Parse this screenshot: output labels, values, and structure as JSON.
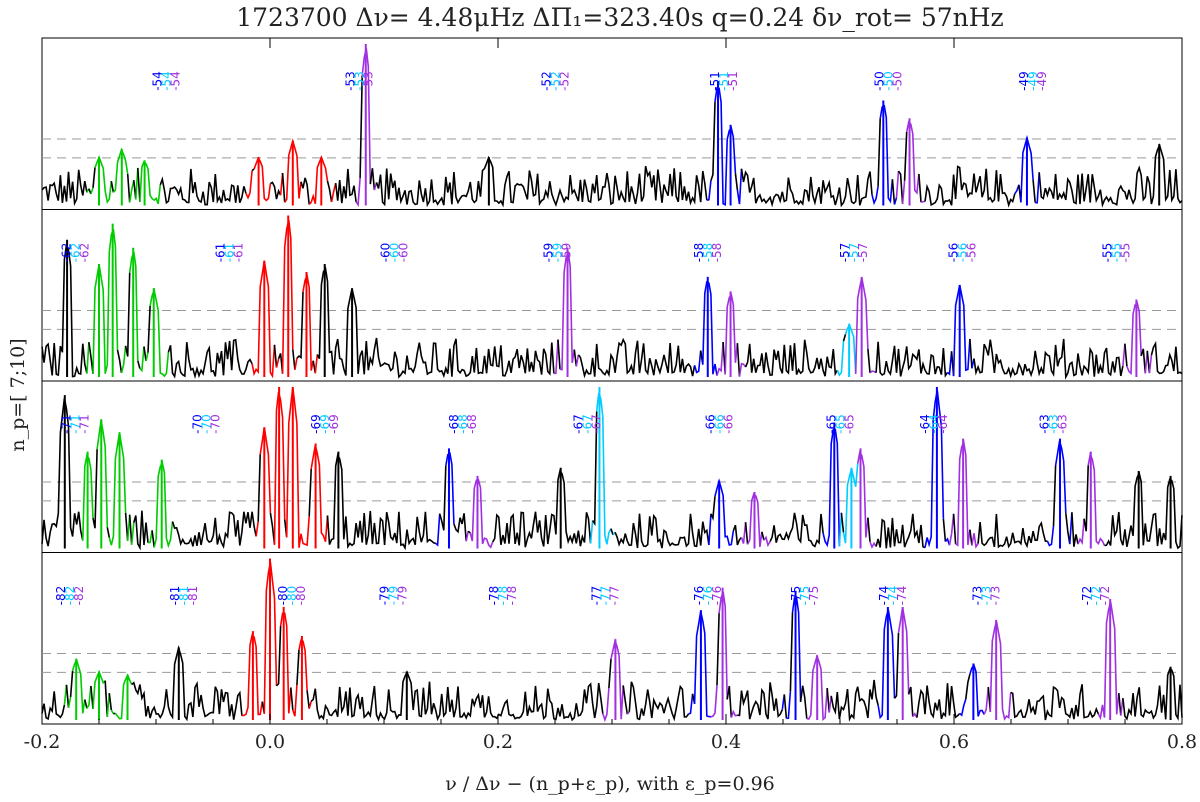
{
  "chart_data": {
    "type": "line",
    "title": "1723700  Δν= 4.48μHz  ΔΠ₁=323.40s  q=0.24  δν_rot= 57nHz",
    "xlabel": "ν / Δν − (n_p+ε_p),   with ε_p=0.96",
    "ylabel": "n_p=[ 7;10]",
    "xlim": [
      -0.2,
      0.8
    ],
    "xticks": [
      "-0.2",
      "0.0",
      "0.2",
      "0.4",
      "0.6",
      "0.8"
    ],
    "grid": "dashed horizontal threshold lines in each panel",
    "colors": {
      "spectrum": "#000000",
      "l0": "#ff0000",
      "l2": "#00cc00",
      "m_minus": "#0000ff",
      "m_zero": "#00ccff",
      "m_plus": "#a030e0",
      "threshold": "#999999"
    },
    "panels": [
      {
        "labels": [
          {
            "x": -0.095,
            "text": [
              "-54",
              "-54",
              "-54"
            ]
          },
          {
            "x": 0.074,
            "text": [
              "-53",
              "-53",
              "-53"
            ]
          },
          {
            "x": 0.246,
            "text": [
              "-52",
              "-52",
              "-52"
            ]
          },
          {
            "x": 0.394,
            "text": [
              "-51",
              "-51",
              "-51"
            ]
          },
          {
            "x": 0.538,
            "text": [
              "-50",
              "-50",
              "-50"
            ]
          },
          {
            "x": 0.665,
            "text": [
              "-49",
              "-49",
              "-49"
            ]
          }
        ],
        "peaks": [
          {
            "x": -0.15,
            "h": 0.3,
            "c": "l2"
          },
          {
            "x": -0.13,
            "h": 0.35,
            "c": "l2"
          },
          {
            "x": -0.11,
            "h": 0.28,
            "c": "l2"
          },
          {
            "x": -0.01,
            "h": 0.3,
            "c": "l0"
          },
          {
            "x": 0.02,
            "h": 0.4,
            "c": "l0"
          },
          {
            "x": 0.045,
            "h": 0.3,
            "c": "l0"
          },
          {
            "x": 0.084,
            "h": 1.0,
            "c": "m_plus"
          },
          {
            "x": 0.393,
            "h": 0.77,
            "c": "m_minus"
          },
          {
            "x": 0.404,
            "h": 0.5,
            "c": "m_minus"
          },
          {
            "x": 0.538,
            "h": 0.65,
            "c": "m_minus"
          },
          {
            "x": 0.561,
            "h": 0.54,
            "c": "m_plus"
          },
          {
            "x": 0.664,
            "h": 0.42,
            "c": "m_minus"
          },
          {
            "x": 0.78,
            "h": 0.38,
            "c": "spectrum"
          },
          {
            "x": 0.192,
            "h": 0.3,
            "c": "spectrum"
          }
        ]
      },
      {
        "labels": [
          {
            "x": -0.175,
            "text": [
              "-62",
              "-62",
              "-62"
            ]
          },
          {
            "x": -0.04,
            "text": [
              "-61",
              "-61",
              "-61"
            ]
          },
          {
            "x": 0.105,
            "text": [
              "-60",
              "-60",
              "-60"
            ]
          },
          {
            "x": 0.248,
            "text": [
              "-59",
              "-59",
              "-59"
            ]
          },
          {
            "x": 0.38,
            "text": [
              "-58",
              "-58",
              "-58"
            ]
          },
          {
            "x": 0.508,
            "text": [
              "-57",
              "-57",
              "-57"
            ]
          },
          {
            "x": 0.603,
            "text": [
              "-56",
              "-56",
              "-56"
            ]
          },
          {
            "x": 0.738,
            "text": [
              "-55",
              "-55",
              "-55"
            ]
          }
        ],
        "peaks": [
          {
            "x": -0.178,
            "h": 0.85,
            "c": "spectrum"
          },
          {
            "x": -0.15,
            "h": 0.7,
            "c": "l2"
          },
          {
            "x": -0.138,
            "h": 0.95,
            "c": "l2"
          },
          {
            "x": -0.12,
            "h": 0.8,
            "c": "l2"
          },
          {
            "x": -0.102,
            "h": 0.55,
            "c": "l2"
          },
          {
            "x": -0.005,
            "h": 0.72,
            "c": "l0"
          },
          {
            "x": 0.016,
            "h": 1.0,
            "c": "l0"
          },
          {
            "x": 0.032,
            "h": 0.65,
            "c": "l0"
          },
          {
            "x": 0.048,
            "h": 0.7,
            "c": "spectrum"
          },
          {
            "x": 0.072,
            "h": 0.55,
            "c": "spectrum"
          },
          {
            "x": 0.261,
            "h": 0.8,
            "c": "m_plus"
          },
          {
            "x": 0.384,
            "h": 0.62,
            "c": "m_minus"
          },
          {
            "x": 0.404,
            "h": 0.53,
            "c": "m_plus"
          },
          {
            "x": 0.508,
            "h": 0.33,
            "c": "m_zero"
          },
          {
            "x": 0.519,
            "h": 0.62,
            "c": "m_plus"
          },
          {
            "x": 0.605,
            "h": 0.57,
            "c": "m_minus"
          },
          {
            "x": 0.76,
            "h": 0.48,
            "c": "m_plus"
          }
        ]
      },
      {
        "labels": [
          {
            "x": -0.175,
            "text": [
              "-71",
              "-71",
              "-71"
            ]
          },
          {
            "x": -0.06,
            "text": [
              "-70",
              "-70",
              "-70"
            ]
          },
          {
            "x": 0.044,
            "text": [
              "-69",
              "-69",
              "-69"
            ]
          },
          {
            "x": 0.165,
            "text": [
              "-68",
              "-68",
              "-68"
            ]
          },
          {
            "x": 0.274,
            "text": [
              "-67",
              "-67",
              "-67"
            ]
          },
          {
            "x": 0.39,
            "text": [
              "-66",
              "-66",
              "-66"
            ]
          },
          {
            "x": 0.496,
            "text": [
              "-65",
              "-65",
              "-65"
            ]
          },
          {
            "x": 0.578,
            "text": [
              "-64",
              "-64",
              "-64"
            ]
          },
          {
            "x": 0.683,
            "text": [
              "-63",
              "-63",
              "-63"
            ]
          }
        ],
        "peaks": [
          {
            "x": -0.18,
            "h": 0.95,
            "c": "spectrum"
          },
          {
            "x": -0.16,
            "h": 0.6,
            "c": "l2"
          },
          {
            "x": -0.148,
            "h": 0.8,
            "c": "l2"
          },
          {
            "x": -0.132,
            "h": 0.72,
            "c": "l2"
          },
          {
            "x": -0.095,
            "h": 0.55,
            "c": "l2"
          },
          {
            "x": -0.005,
            "h": 0.75,
            "c": "l0"
          },
          {
            "x": 0.008,
            "h": 1.0,
            "c": "l0"
          },
          {
            "x": 0.02,
            "h": 1.0,
            "c": "l0"
          },
          {
            "x": 0.04,
            "h": 0.65,
            "c": "l0"
          },
          {
            "x": 0.06,
            "h": 0.6,
            "c": "spectrum"
          },
          {
            "x": 0.157,
            "h": 0.62,
            "c": "m_minus"
          },
          {
            "x": 0.182,
            "h": 0.45,
            "c": "m_plus"
          },
          {
            "x": 0.255,
            "h": 0.5,
            "c": "spectrum"
          },
          {
            "x": 0.289,
            "h": 1.0,
            "c": "m_zero"
          },
          {
            "x": 0.394,
            "h": 0.42,
            "c": "m_minus"
          },
          {
            "x": 0.425,
            "h": 0.35,
            "c": "m_plus"
          },
          {
            "x": 0.495,
            "h": 0.78,
            "c": "m_minus"
          },
          {
            "x": 0.51,
            "h": 0.5,
            "c": "m_zero"
          },
          {
            "x": 0.518,
            "h": 0.62,
            "c": "m_plus"
          },
          {
            "x": 0.585,
            "h": 1.0,
            "c": "m_minus"
          },
          {
            "x": 0.608,
            "h": 0.68,
            "c": "m_plus"
          },
          {
            "x": 0.693,
            "h": 0.68,
            "c": "m_minus"
          },
          {
            "x": 0.72,
            "h": 0.6,
            "c": "m_plus"
          },
          {
            "x": 0.762,
            "h": 0.48,
            "c": "spectrum"
          },
          {
            "x": 0.79,
            "h": 0.45,
            "c": "spectrum"
          }
        ]
      },
      {
        "labels": [
          {
            "x": -0.18,
            "text": [
              "-82",
              "-82",
              "-82"
            ]
          },
          {
            "x": -0.08,
            "text": [
              "-81",
              "-81",
              "-81"
            ]
          },
          {
            "x": 0.015,
            "text": [
              "-80",
              "-80",
              "-80"
            ]
          },
          {
            "x": 0.104,
            "text": [
              "-79",
              "-79",
              "-79"
            ]
          },
          {
            "x": 0.2,
            "text": [
              "-78",
              "-78",
              "-78"
            ]
          },
          {
            "x": 0.29,
            "text": [
              "-77",
              "-77",
              "-77"
            ]
          },
          {
            "x": 0.38,
            "text": [
              "-76",
              "-76",
              "-76"
            ]
          },
          {
            "x": 0.465,
            "text": [
              "-75",
              "-75",
              "-75"
            ]
          },
          {
            "x": 0.542,
            "text": [
              "-74",
              "-74",
              "-74"
            ]
          },
          {
            "x": 0.624,
            "text": [
              "-73",
              "-73",
              "-73"
            ]
          },
          {
            "x": 0.72,
            "text": [
              "-72",
              "-72",
              "-72"
            ]
          }
        ],
        "peaks": [
          {
            "x": -0.17,
            "h": 0.38,
            "c": "l2"
          },
          {
            "x": -0.15,
            "h": 0.3,
            "c": "l2"
          },
          {
            "x": -0.125,
            "h": 0.28,
            "c": "l2"
          },
          {
            "x": -0.08,
            "h": 0.45,
            "c": "spectrum"
          },
          {
            "x": -0.015,
            "h": 0.55,
            "c": "l0"
          },
          {
            "x": 0.0,
            "h": 1.0,
            "c": "l0"
          },
          {
            "x": 0.012,
            "h": 0.7,
            "c": "l0"
          },
          {
            "x": 0.028,
            "h": 0.52,
            "c": "l0"
          },
          {
            "x": 0.12,
            "h": 0.3,
            "c": "spectrum"
          },
          {
            "x": 0.303,
            "h": 0.5,
            "c": "m_plus"
          },
          {
            "x": 0.378,
            "h": 0.68,
            "c": "m_minus"
          },
          {
            "x": 0.397,
            "h": 0.82,
            "c": "m_plus"
          },
          {
            "x": 0.461,
            "h": 0.8,
            "c": "m_minus"
          },
          {
            "x": 0.48,
            "h": 0.4,
            "c": "m_plus"
          },
          {
            "x": 0.542,
            "h": 0.7,
            "c": "m_minus"
          },
          {
            "x": 0.555,
            "h": 0.7,
            "c": "m_plus"
          },
          {
            "x": 0.617,
            "h": 0.35,
            "c": "m_minus"
          },
          {
            "x": 0.637,
            "h": 0.62,
            "c": "m_plus"
          },
          {
            "x": 0.737,
            "h": 0.75,
            "c": "m_plus"
          },
          {
            "x": 0.79,
            "h": 0.33,
            "c": "spectrum"
          }
        ]
      }
    ]
  }
}
